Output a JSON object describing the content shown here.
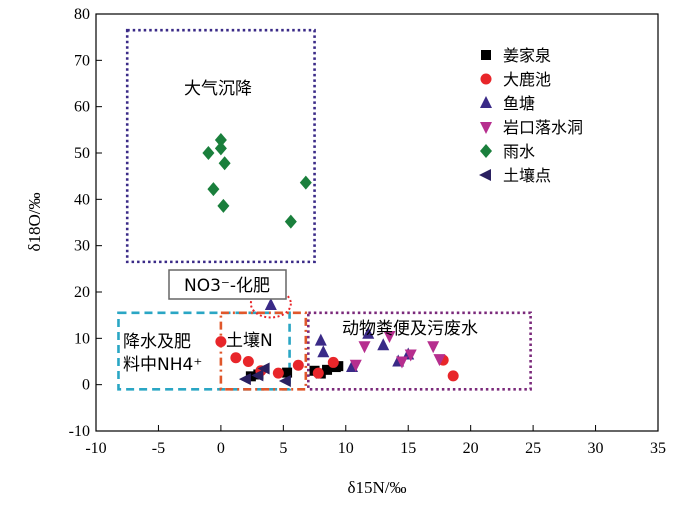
{
  "chart_data": {
    "type": "scatter",
    "xlabel": "δ15N/‰",
    "ylabel": "δ18O/‰",
    "xlim": [
      -10,
      35
    ],
    "ylim": [
      -10,
      80
    ],
    "xticks": [
      -10,
      -5,
      0,
      5,
      10,
      15,
      20,
      25,
      30,
      35
    ],
    "yticks": [
      -10,
      0,
      10,
      20,
      30,
      40,
      50,
      60,
      70,
      80
    ],
    "grid": false,
    "legend_position": "top-right",
    "series": [
      {
        "name": "姜家泉",
        "marker": "square",
        "color": "#000000",
        "points": [
          [
            2.4,
            1.8
          ],
          [
            3.0,
            2.2
          ],
          [
            5.3,
            2.6
          ],
          [
            7.5,
            3.0
          ],
          [
            8.0,
            2.4
          ],
          [
            8.5,
            3.2
          ],
          [
            9.2,
            3.8
          ],
          [
            9.4,
            4.0
          ]
        ]
      },
      {
        "name": "大鹿池",
        "marker": "circle",
        "color": "#e8262a",
        "points": [
          [
            0.0,
            9.3
          ],
          [
            1.2,
            5.8
          ],
          [
            2.2,
            5.0
          ],
          [
            3.2,
            3.0
          ],
          [
            4.6,
            2.5
          ],
          [
            6.2,
            4.2
          ],
          [
            7.8,
            2.5
          ],
          [
            9.0,
            4.8
          ],
          [
            17.8,
            5.3
          ],
          [
            18.6,
            1.9
          ]
        ]
      },
      {
        "name": "鱼塘",
        "marker": "triangle-up",
        "color": "#3a2a87",
        "points": [
          [
            4.0,
            17.2
          ],
          [
            8.0,
            9.5
          ],
          [
            8.2,
            7.0
          ],
          [
            10.5,
            3.8
          ],
          [
            11.8,
            11.0
          ],
          [
            13.0,
            8.5
          ],
          [
            14.2,
            5.0
          ],
          [
            15.0,
            6.5
          ]
        ]
      },
      {
        "name": "岩口落水洞",
        "marker": "triangle-down",
        "color": "#b62e8e",
        "points": [
          [
            11.5,
            8.3
          ],
          [
            13.5,
            10.5
          ],
          [
            14.5,
            5.0
          ],
          [
            15.2,
            6.5
          ],
          [
            17.0,
            8.3
          ],
          [
            17.5,
            5.5
          ],
          [
            10.8,
            4.3
          ]
        ]
      },
      {
        "name": "雨水",
        "marker": "diamond",
        "color": "#1a7f3c",
        "points": [
          [
            0.0,
            52.8
          ],
          [
            0.0,
            51.0
          ],
          [
            -1.0,
            50.0
          ],
          [
            0.3,
            47.8
          ],
          [
            -0.6,
            42.2
          ],
          [
            0.2,
            38.6
          ],
          [
            6.8,
            43.6
          ],
          [
            5.6,
            35.2
          ]
        ]
      },
      {
        "name": "土壤点",
        "marker": "triangle-left",
        "color": "#2a2060",
        "points": [
          [
            2.0,
            1.2
          ],
          [
            3.5,
            3.5
          ],
          [
            5.2,
            0.8
          ],
          [
            3.0,
            2.0
          ]
        ]
      }
    ],
    "annotations": {
      "atmospheric": "大气沉降",
      "fertilizer": "NO3⁻-化肥",
      "precip_nh4_line1": "降水及肥",
      "precip_nh4_line2": "料中NH4⁺",
      "soil_n": "土壤N",
      "manure": "动物粪便及污废水"
    },
    "zones": [
      {
        "label": "atmospheric",
        "color": "#3a2a87",
        "style": "dotted",
        "x": [
          -7.5,
          7.5
        ],
        "y": [
          26.5,
          76.5
        ]
      },
      {
        "label": "precip_nh4",
        "color": "#2aa6c4",
        "style": "dashed",
        "x": [
          -8.2,
          5.5
        ],
        "y": [
          -1.0,
          15.5
        ]
      },
      {
        "label": "soil_n",
        "color": "#e0572b",
        "style": "dashdot",
        "x": [
          0.0,
          6.8
        ],
        "y": [
          -1.0,
          15.5
        ]
      },
      {
        "label": "manure",
        "color": "#7b2a7b",
        "style": "dotted",
        "x": [
          7.0,
          24.8
        ],
        "y": [
          -1.0,
          15.5
        ]
      },
      {
        "label": "fertilizer-ellipse",
        "color": "#e8262a",
        "style": "dotted-ellipse",
        "cx": 4.0,
        "cy": 17.5,
        "rx": 1.6,
        "ry": 3.0
      }
    ]
  }
}
